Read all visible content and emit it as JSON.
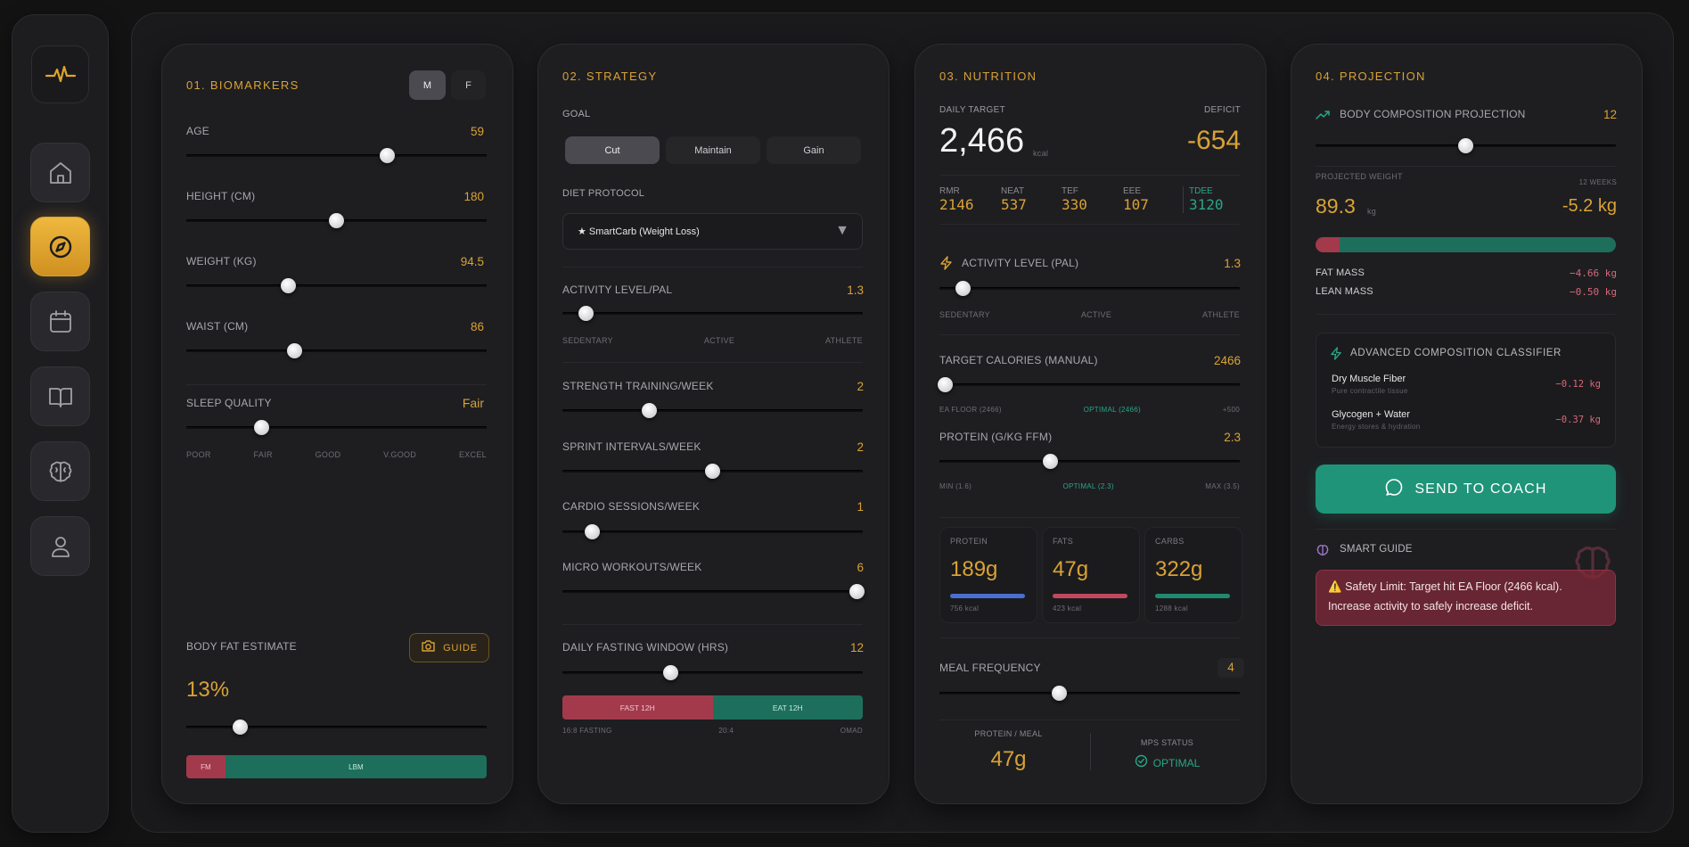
{
  "nav": {
    "items": [
      {
        "name": "pulse-logo-icon"
      },
      {
        "name": "home-icon"
      },
      {
        "name": "compass-icon",
        "active": true
      },
      {
        "name": "calendar-icon"
      },
      {
        "name": "book-icon"
      },
      {
        "name": "brain-icon"
      },
      {
        "name": "user-icon"
      }
    ]
  },
  "biomarkers": {
    "title": "01. BIOMARKERS",
    "sex_options": [
      "M",
      "F"
    ],
    "sex_selected": "M",
    "age": {
      "label": "AGE",
      "value": "59",
      "level": 0.67
    },
    "height": {
      "label": "HEIGHT (CM)",
      "value": "180",
      "level": 0.5
    },
    "weight": {
      "label": "WEIGHT (KG)",
      "value": "94.5",
      "level": 0.34
    },
    "waist": {
      "label": "WAIST (CM)",
      "value": "86",
      "level": 0.36
    },
    "sleep": {
      "label": "SLEEP QUALITY",
      "value": "Fair",
      "level": 0.25,
      "ticks": [
        "POOR",
        "FAIR",
        "GOOD",
        "V.GOOD",
        "EXCEL"
      ]
    },
    "body_fat": {
      "label": "BODY FAT ESTIMATE",
      "guide_label": "GUIDE",
      "value": "13%",
      "level": 0.18,
      "fm_label": "FM",
      "lbm_label": "LBM",
      "fm_fraction": 0.13
    }
  },
  "strategy": {
    "title": "02. STRATEGY",
    "goal_label": "GOAL",
    "goal_options": [
      "Cut",
      "Maintain",
      "Gain"
    ],
    "goal_selected": "Cut",
    "diet_label": "DIET PROTOCOL",
    "diet_value": "★ SmartCarb (Weight Loss)",
    "activity": {
      "label": "ACTIVITY LEVEL/PAL",
      "value": "1.3",
      "level": 0.08,
      "ticks": [
        "SEDENTARY",
        "ACTIVE",
        "ATHLETE"
      ]
    },
    "strength": {
      "label": "STRENGTH TRAINING/WEEK",
      "value": "2",
      "level": 0.29
    },
    "sprint": {
      "label": "SPRINT INTERVALS/WEEK",
      "value": "2",
      "level": 0.5
    },
    "cardio": {
      "label": "CARDIO SESSIONS/WEEK",
      "value": "1",
      "level": 0.1
    },
    "micro": {
      "label": "MICRO WORKOUTS/WEEK",
      "value": "6",
      "level": 0.98
    },
    "fasting": {
      "label": "DAILY FASTING WINDOW (HRS)",
      "value": "12",
      "level": 0.36,
      "fast_label": "FAST 12H",
      "eat_label": "EAT 12H",
      "fast_fraction": 0.5,
      "ticks": [
        "16:8 FASTING",
        "20:4",
        "OMAD"
      ]
    }
  },
  "nutrition": {
    "title": "03. NUTRITION",
    "daily_target_label": "DAILY TARGET",
    "daily_target": "2,466",
    "kcal_unit": "kcal",
    "deficit_label": "DEFICIT",
    "deficit": "-654",
    "stats": [
      {
        "label": "RMR",
        "value": "2146"
      },
      {
        "label": "NEAT",
        "value": "537"
      },
      {
        "label": "TEF",
        "value": "330"
      },
      {
        "label": "EEE",
        "value": "107"
      },
      {
        "label": "TDEE",
        "value": "3120"
      }
    ],
    "activity": {
      "label": "ACTIVITY LEVEL (PAL)",
      "value": "1.3",
      "level": 0.08,
      "ticks": [
        "SEDENTARY",
        "ACTIVE",
        "ATHLETE"
      ]
    },
    "target_cal": {
      "label": "TARGET CALORIES (MANUAL)",
      "value": "2466",
      "level": 0.02,
      "ticks": [
        "EA FLOOR (2466)",
        "OPTIMAL (2466)",
        "+500"
      ]
    },
    "protein": {
      "label": "PROTEIN (G/KG FFM)",
      "value": "2.3",
      "level": 0.37,
      "ticks": [
        "MIN (1.6)",
        "OPTIMAL (2.3)",
        "MAX (3.5)"
      ]
    },
    "macros": [
      {
        "label": "PROTEIN",
        "value": "189g",
        "kcal": "756 kcal",
        "color": "#4a6fd0"
      },
      {
        "label": "FATS",
        "value": "47g",
        "kcal": "423 kcal",
        "color": "#c2485e"
      },
      {
        "label": "CARBS",
        "value": "322g",
        "kcal": "1288 kcal",
        "color": "#1f8a70"
      }
    ],
    "meal": {
      "label": "MEAL FREQUENCY",
      "value": "4",
      "level": 0.4
    },
    "protein_meal_label": "PROTEIN / MEAL",
    "protein_meal": "47g",
    "mps_label": "MPS STATUS",
    "mps_value": "OPTIMAL"
  },
  "projection": {
    "title": "04. PROJECTION",
    "body_comp": {
      "label": "BODY COMPOSITION PROJECTION",
      "value": "12",
      "level": 0.5
    },
    "projected_weight_label": "PROJECTED WEIGHT",
    "weeks_label": "12 WEEKS",
    "projected_weight": "89.3",
    "weight_unit": "kg",
    "weight_change": "-5.2 kg",
    "fat_fraction": 0.08,
    "fat_mass_label": "FAT MASS",
    "fat_mass": "−4.66 kg",
    "lean_mass_label": "LEAN MASS",
    "lean_mass": "−0.50 kg",
    "classifier_title": "ADVANCED COMPOSITION CLASSIFIER",
    "classifier": [
      {
        "name": "Dry Muscle Fiber",
        "sub": "Pure contractile tissue",
        "value": "−0.12 kg"
      },
      {
        "name": "Glycogen + Water",
        "sub": "Energy stores & hydration",
        "value": "−0.37 kg"
      }
    ],
    "send_label": "SEND TO COACH",
    "guide_title": "SMART GUIDE",
    "warning_line1": "Safety Limit: Target hit EA Floor (2466 kcal).",
    "warning_line2": "Increase activity to safely increase deficit."
  },
  "colors": {
    "accent": "#d9a235",
    "teal": "#1f8a70",
    "red": "#a23a4c",
    "bg": "#131313"
  }
}
